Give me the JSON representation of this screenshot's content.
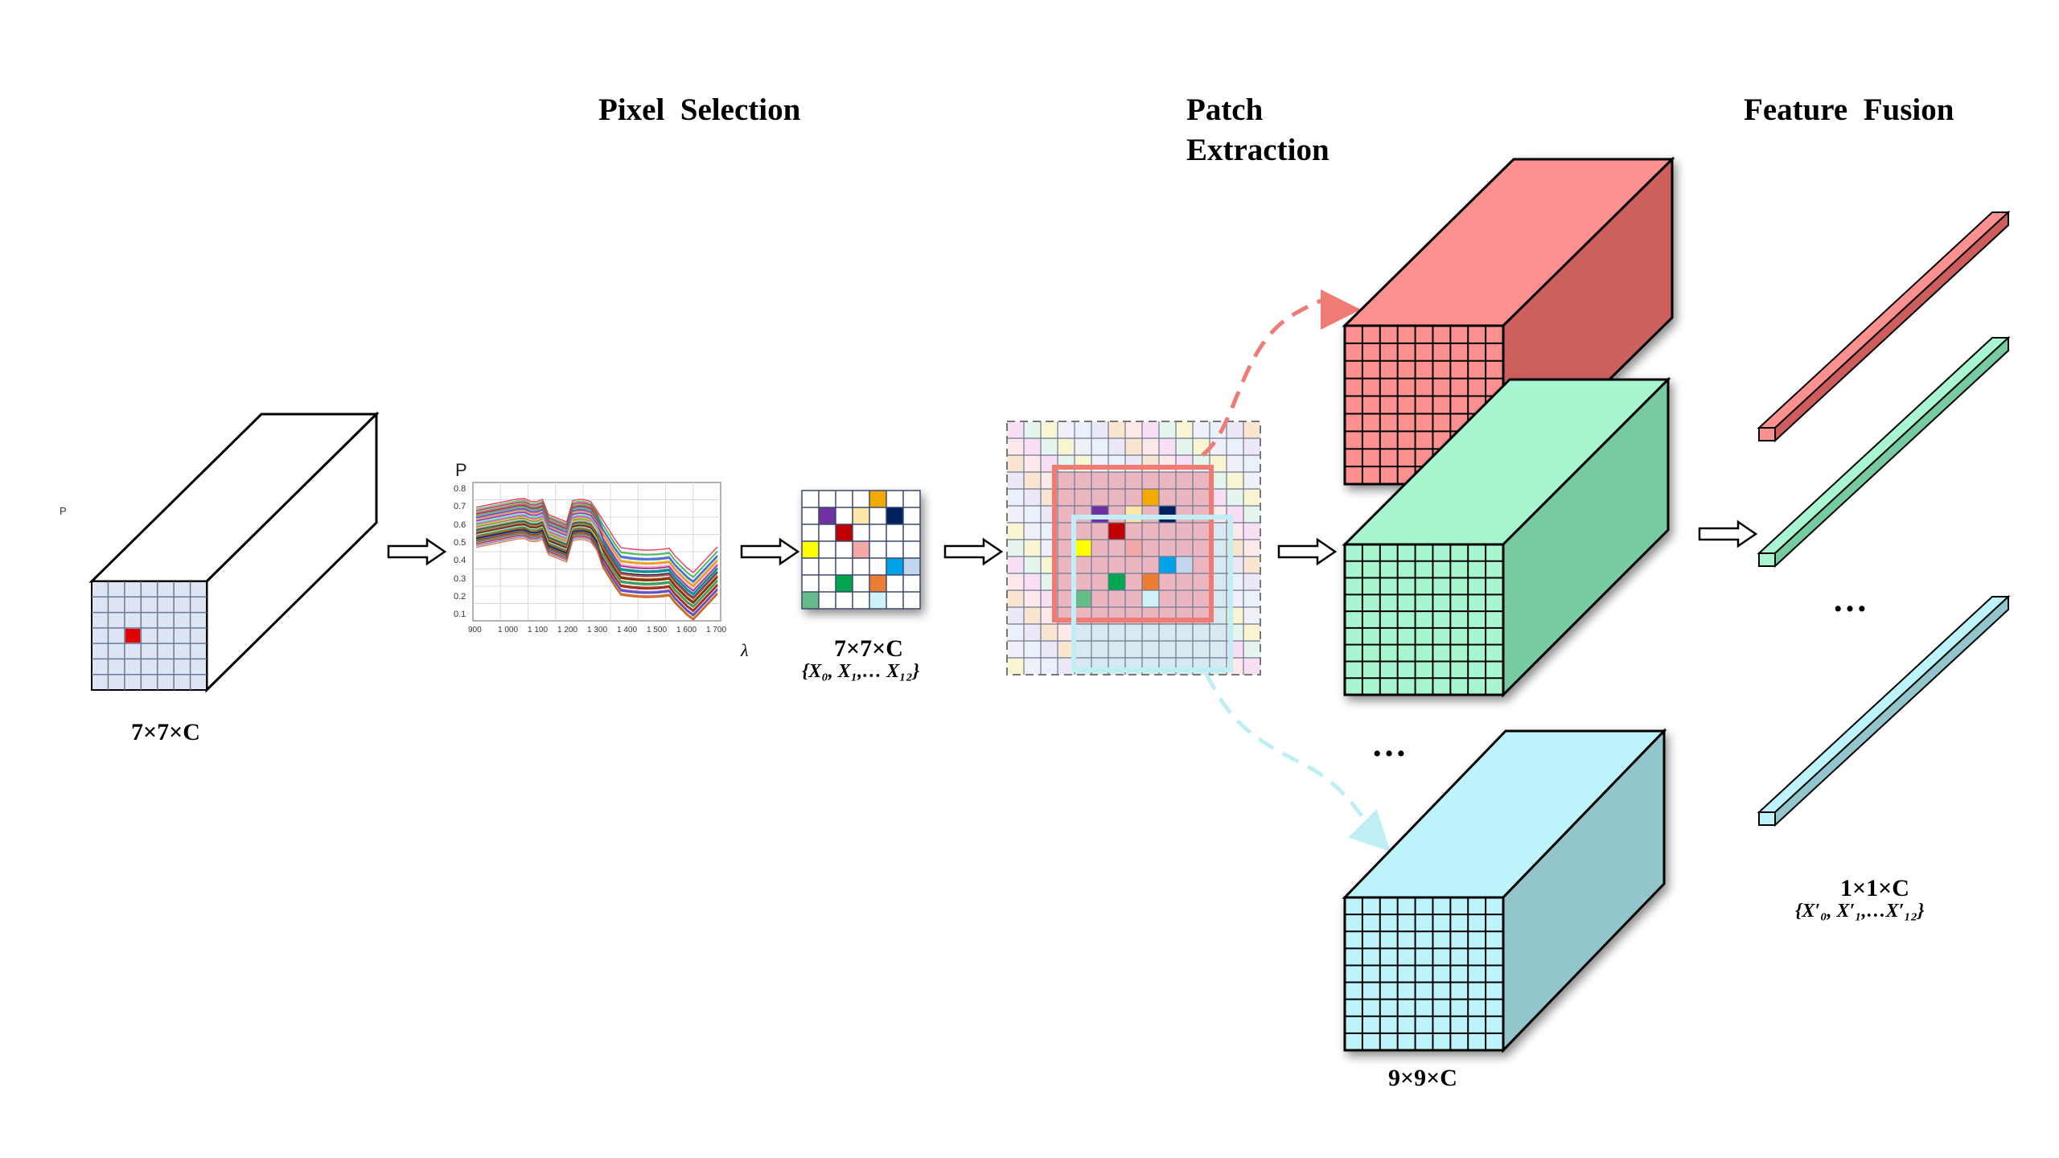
{
  "titles": {
    "pixel_selection": "Pixel  Selection",
    "patch_extraction": "Patch\nExtraction",
    "feature_fusion": "Feature  Fusion"
  },
  "labels": {
    "input_dim": "7×7×C",
    "selected_dim": "7×7×C",
    "selected_set": "{X₀, X₁,… X₁₂}",
    "patch_dim": "9×9×C",
    "output_dim": "1×1×C",
    "output_set": "{X′₀, X′₁,…X′₁₂}",
    "ellipsis": "…",
    "stray_p": "P"
  },
  "spectrum_plot": {
    "y_axis_label": "P",
    "x_axis_label": "λ",
    "y_ticks": [
      "0.8",
      "0.7",
      "0.6",
      "0.5",
      "0.4",
      "0.3",
      "0.2",
      "0.1"
    ],
    "x_ticks": [
      "900",
      "1 000",
      "1 100",
      "1 200",
      "1 300",
      "1 400",
      "1 500",
      "1 600",
      "1 700"
    ]
  },
  "colors": {
    "grid_face": "#dde4f4",
    "selected_pixel": "#e00000",
    "red_cube": "#fc9190",
    "red_cube_side": "#cd5e5b",
    "green_cube": "#a8f6d0",
    "green_cube_side": "#76cba0",
    "cyan_cube": "#bdf4fb",
    "cyan_cube_side": "#93c6cc",
    "red_frame": "#f07a74",
    "cyan_frame": "#bfeff5"
  },
  "selected_pixels": [
    {
      "r": 0,
      "c": 4,
      "color": "#f2a900"
    },
    {
      "r": 1,
      "c": 1,
      "color": "#7030a0"
    },
    {
      "r": 1,
      "c": 3,
      "color": "#fbe5a8"
    },
    {
      "r": 1,
      "c": 5,
      "color": "#002060"
    },
    {
      "r": 2,
      "c": 2,
      "color": "#c00000"
    },
    {
      "r": 3,
      "c": 0,
      "color": "#ffff00"
    },
    {
      "r": 3,
      "c": 3,
      "color": "#f4a7a7"
    },
    {
      "r": 4,
      "c": 5,
      "color": "#00a2e8"
    },
    {
      "r": 4,
      "c": 6,
      "color": "#c4d6ee"
    },
    {
      "r": 5,
      "c": 2,
      "color": "#00a650"
    },
    {
      "r": 5,
      "c": 4,
      "color": "#ed7d31"
    },
    {
      "r": 6,
      "c": 0,
      "color": "#66bb88"
    },
    {
      "r": 6,
      "c": 4,
      "color": "#cdf3f8"
    }
  ]
}
